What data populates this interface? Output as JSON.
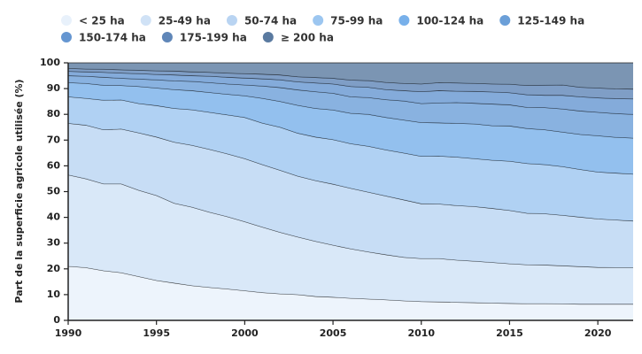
{
  "chart_data": {
    "type": "stacked_area",
    "y_label": "Part de la superficie agricole utilisée (%)",
    "x": [
      1990,
      1991,
      1992,
      1993,
      1994,
      1995,
      1996,
      1997,
      1998,
      1999,
      2000,
      2001,
      2002,
      2003,
      2004,
      2005,
      2006,
      2007,
      2008,
      2009,
      2010,
      2011,
      2012,
      2013,
      2014,
      2015,
      2016,
      2017,
      2018,
      2019,
      2020,
      2021,
      2022
    ],
    "xlim": [
      1990,
      2022
    ],
    "xticks": [
      1990,
      1995,
      2000,
      2005,
      2010,
      2015,
      2020
    ],
    "ylim": [
      0,
      100
    ],
    "yticks": [
      0,
      10,
      20,
      30,
      40,
      50,
      60,
      70,
      80,
      90,
      100
    ],
    "series": [
      {
        "name": "< 25 ha",
        "color": "#e8f1fb",
        "values": [
          21,
          20.5,
          19.3,
          18.5,
          17,
          15.5,
          14.5,
          13.5,
          12.8,
          12.2,
          11.5,
          10.8,
          10.3,
          10,
          9.3,
          9,
          8.6,
          8.3,
          8,
          7.6,
          7.3,
          7.2,
          7,
          6.9,
          6.7,
          6.6,
          6.5,
          6.5,
          6.4,
          6.3,
          6.3,
          6.3,
          6.3
        ]
      },
      {
        "name": "25-49 ha",
        "color": "#d0e2f6",
        "values": [
          35.5,
          34.5,
          33.7,
          34.5,
          33.5,
          33,
          31,
          30.5,
          29.2,
          28.1,
          26.8,
          25.4,
          23.9,
          22.4,
          21.4,
          20.2,
          19.2,
          18.3,
          17.5,
          16.9,
          16.7,
          16.8,
          16.4,
          16.1,
          15.8,
          15.4,
          15.1,
          15,
          14.8,
          14.6,
          14.3,
          14.2,
          14.2
        ]
      },
      {
        "name": "50-74 ha",
        "color": "#b9d4f2",
        "values": [
          20,
          20.8,
          21,
          21.3,
          22.3,
          22.7,
          23.7,
          24,
          24.4,
          24.4,
          24.5,
          24.3,
          24.1,
          23.6,
          23.6,
          23.7,
          23.5,
          23.2,
          22.8,
          22.3,
          21.3,
          21.2,
          21.2,
          21.2,
          21,
          20.7,
          20,
          19.9,
          19.6,
          19.2,
          18.8,
          18.5,
          18.1
        ]
      },
      {
        "name": "75-99 ha",
        "color": "#9cc6f0",
        "values": [
          10.3,
          10.4,
          11.5,
          11.3,
          11.4,
          12.2,
          13.1,
          13.8,
          14.4,
          15.1,
          16,
          16.1,
          16.7,
          16.7,
          16.9,
          17.3,
          17.3,
          17.8,
          17.9,
          18.2,
          18.4,
          18.6,
          18.8,
          18.6,
          18.7,
          19.1,
          19.3,
          19.1,
          18.9,
          18.5,
          18.2,
          18.2,
          18.2
        ]
      },
      {
        "name": "100-124 ha",
        "color": "#78b0ea",
        "values": [
          5.5,
          5.8,
          5.8,
          5.6,
          6.6,
          6.8,
          7.3,
          7.4,
          7.7,
          8,
          8.4,
          9.6,
          10,
          10.8,
          11.1,
          11.5,
          11.8,
          12.4,
          12.6,
          12.8,
          13.1,
          12.9,
          13.1,
          13.5,
          13.4,
          13.7,
          13.6,
          13.5,
          13.4,
          13.6,
          14.1,
          13.9,
          14
        ]
      },
      {
        "name": "125-149 ha",
        "color": "#6b9fd8",
        "values": [
          2.7,
          2.8,
          3.1,
          2.8,
          2.9,
          3.2,
          3.4,
          3.6,
          3.8,
          4,
          4.2,
          4.8,
          5.4,
          6,
          6.5,
          6.5,
          6.4,
          6.5,
          6.9,
          7.4,
          7.4,
          7.7,
          8.1,
          8,
          8.4,
          8.2,
          8.2,
          8.6,
          9,
          9.1,
          9.1,
          9.2,
          9.2
        ]
      },
      {
        "name": "150-174 ha",
        "color": "#6596d1",
        "values": [
          1.7,
          1.7,
          1.9,
          2,
          2.1,
          2.1,
          2.3,
          2.2,
          2.5,
          2.6,
          2.7,
          2.8,
          3,
          3.1,
          3.4,
          3.6,
          4,
          4,
          3.9,
          4,
          4.6,
          4.8,
          4.4,
          4.6,
          4.7,
          4.7,
          4.9,
          4.8,
          5.3,
          5.5,
          5.6,
          5.8,
          6
        ]
      },
      {
        "name": "175-199 ha",
        "color": "#5f86b8",
        "values": [
          1.1,
          1.1,
          1.2,
          1.3,
          1.3,
          1.4,
          1.5,
          1.5,
          1.5,
          1.6,
          1.7,
          1.8,
          1.9,
          2,
          2.1,
          2.2,
          2.5,
          2.6,
          2.8,
          2.8,
          3,
          3.1,
          3.2,
          3.1,
          3.1,
          3.3,
          3.6,
          3.9,
          4,
          3.7,
          3.8,
          3.8,
          3.8
        ]
      },
      {
        "name": "≥ 200 ha",
        "color": "#5a7aa0",
        "values": [
          2.2,
          2.4,
          2.5,
          2.7,
          2.9,
          3.1,
          3.2,
          3.5,
          3.7,
          4,
          4.2,
          4.4,
          4.7,
          5.4,
          5.7,
          6,
          6.7,
          6.9,
          7.6,
          8,
          8.2,
          7.7,
          7.8,
          8,
          8.2,
          8.3,
          8.8,
          8.7,
          8.6,
          9.5,
          9.8,
          10.1,
          10.2
        ]
      }
    ]
  }
}
